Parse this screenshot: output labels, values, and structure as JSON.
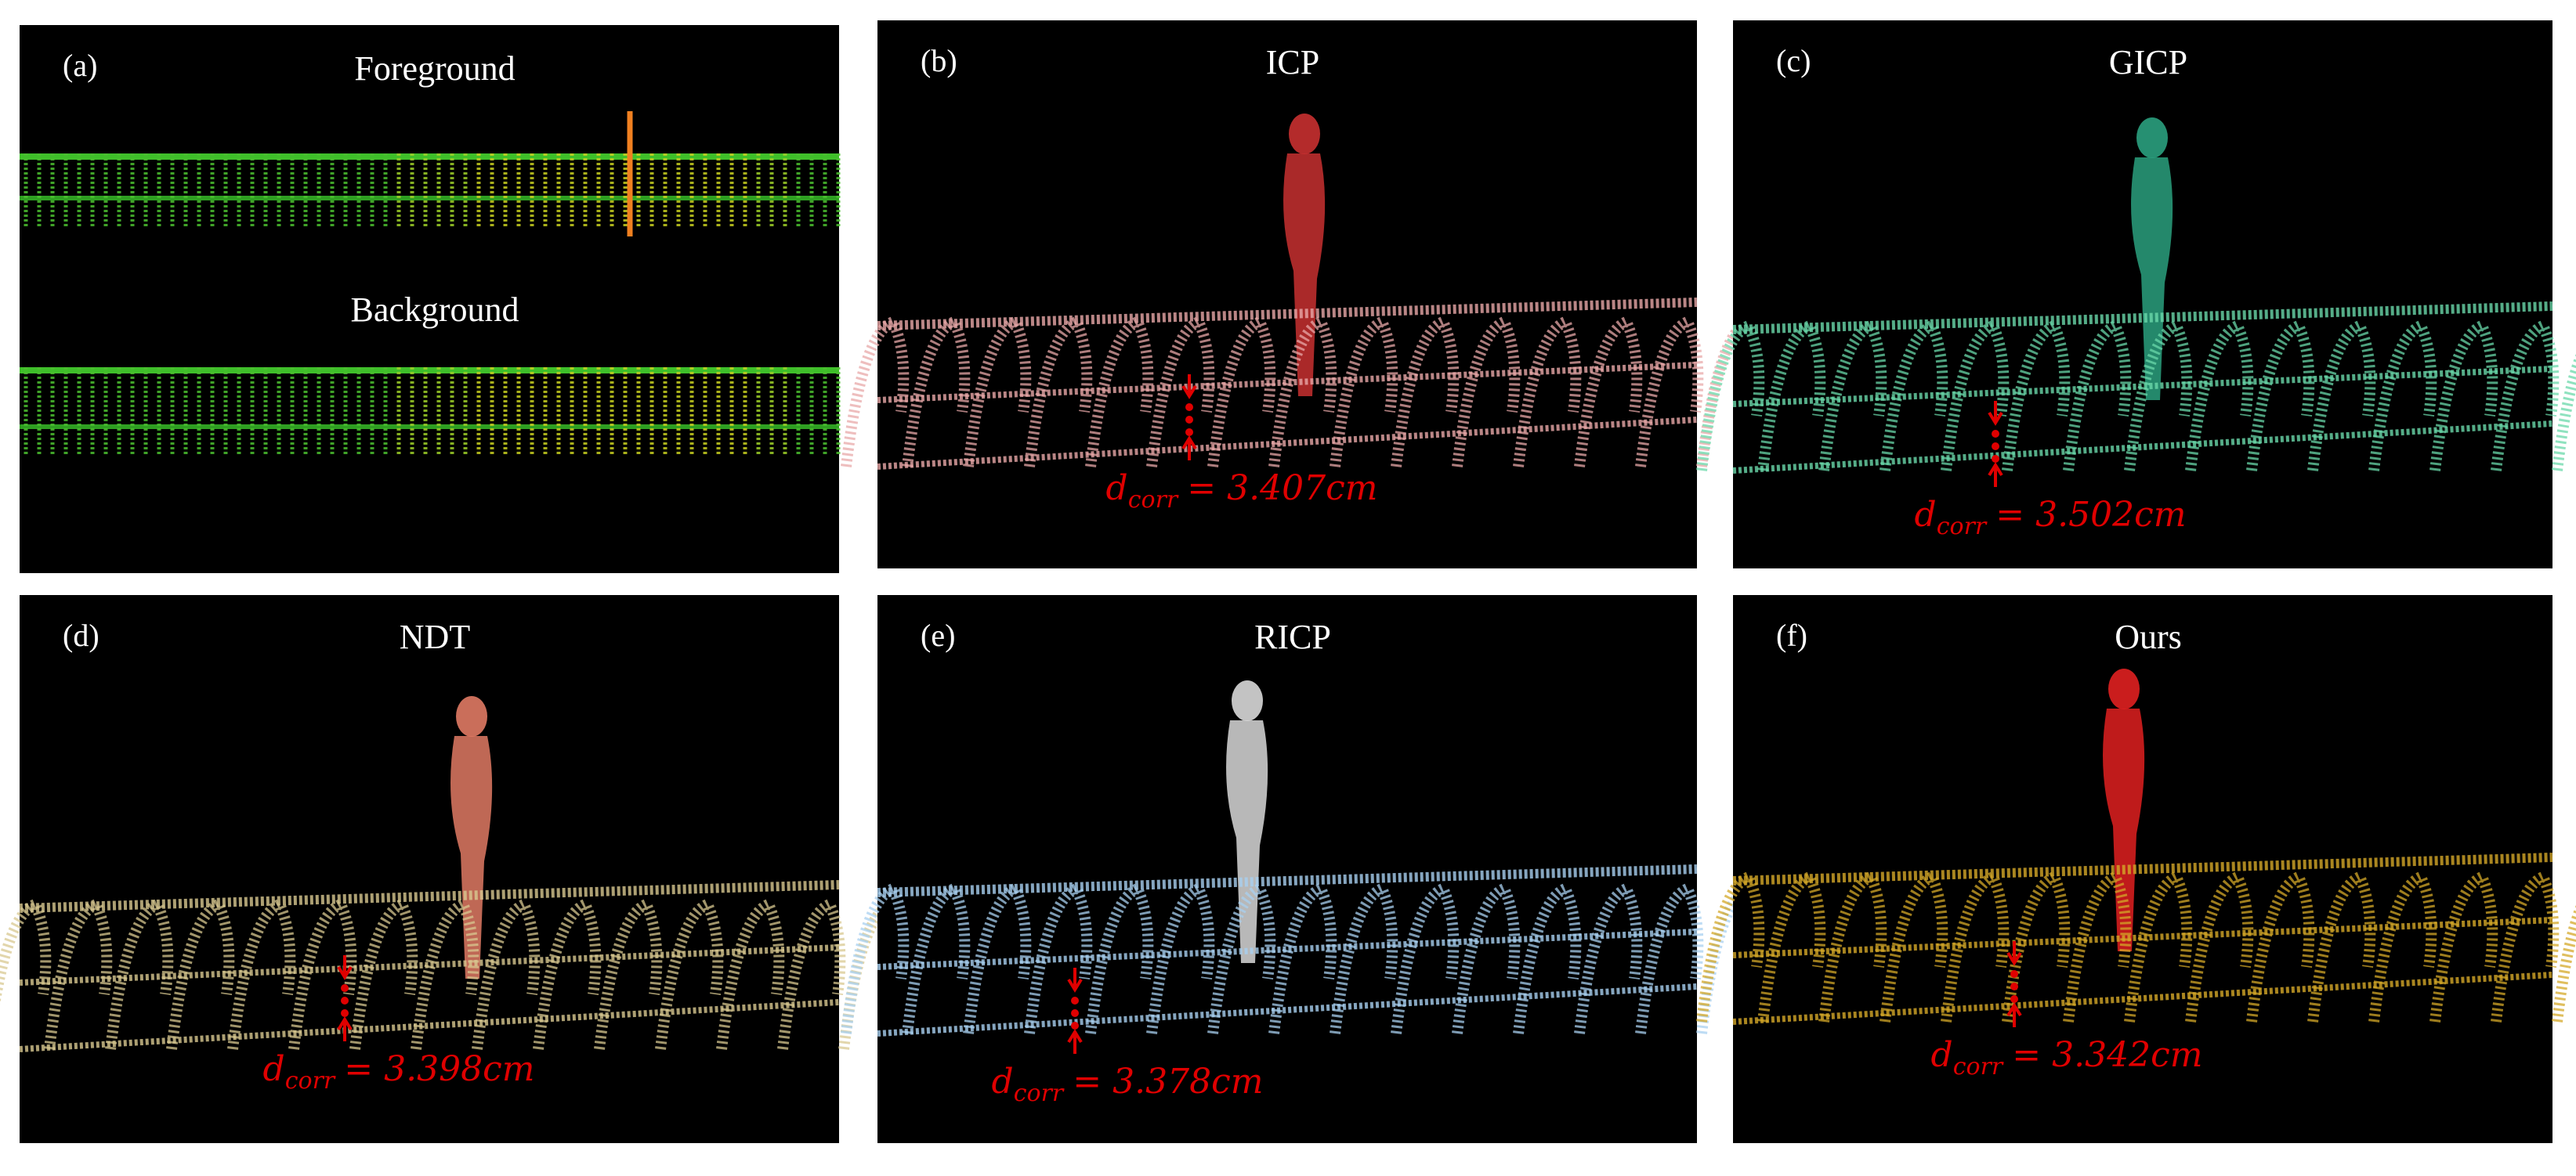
{
  "panels": [
    {
      "label": "(a)",
      "titles": [
        "Foreground",
        "Background"
      ]
    },
    {
      "label": "(b)",
      "title": "ICP",
      "measure": {
        "symbol": "d",
        "subscript": "corr",
        "text": "= 3.407cm"
      }
    },
    {
      "label": "(c)",
      "title": "GICP",
      "measure": {
        "symbol": "d",
        "subscript": "corr",
        "text": "= 3.502cm"
      }
    },
    {
      "label": "(d)",
      "title": "NDT",
      "measure": {
        "symbol": "d",
        "subscript": "corr",
        "text": "= 3.398cm"
      }
    },
    {
      "label": "(e)",
      "title": "RICP",
      "measure": {
        "symbol": "d",
        "subscript": "corr",
        "text": "= 3.378cm"
      }
    },
    {
      "label": "(f)",
      "title": "Ours",
      "measure": {
        "symbol": "d",
        "subscript": "corr",
        "text": "= 3.342cm"
      }
    }
  ]
}
